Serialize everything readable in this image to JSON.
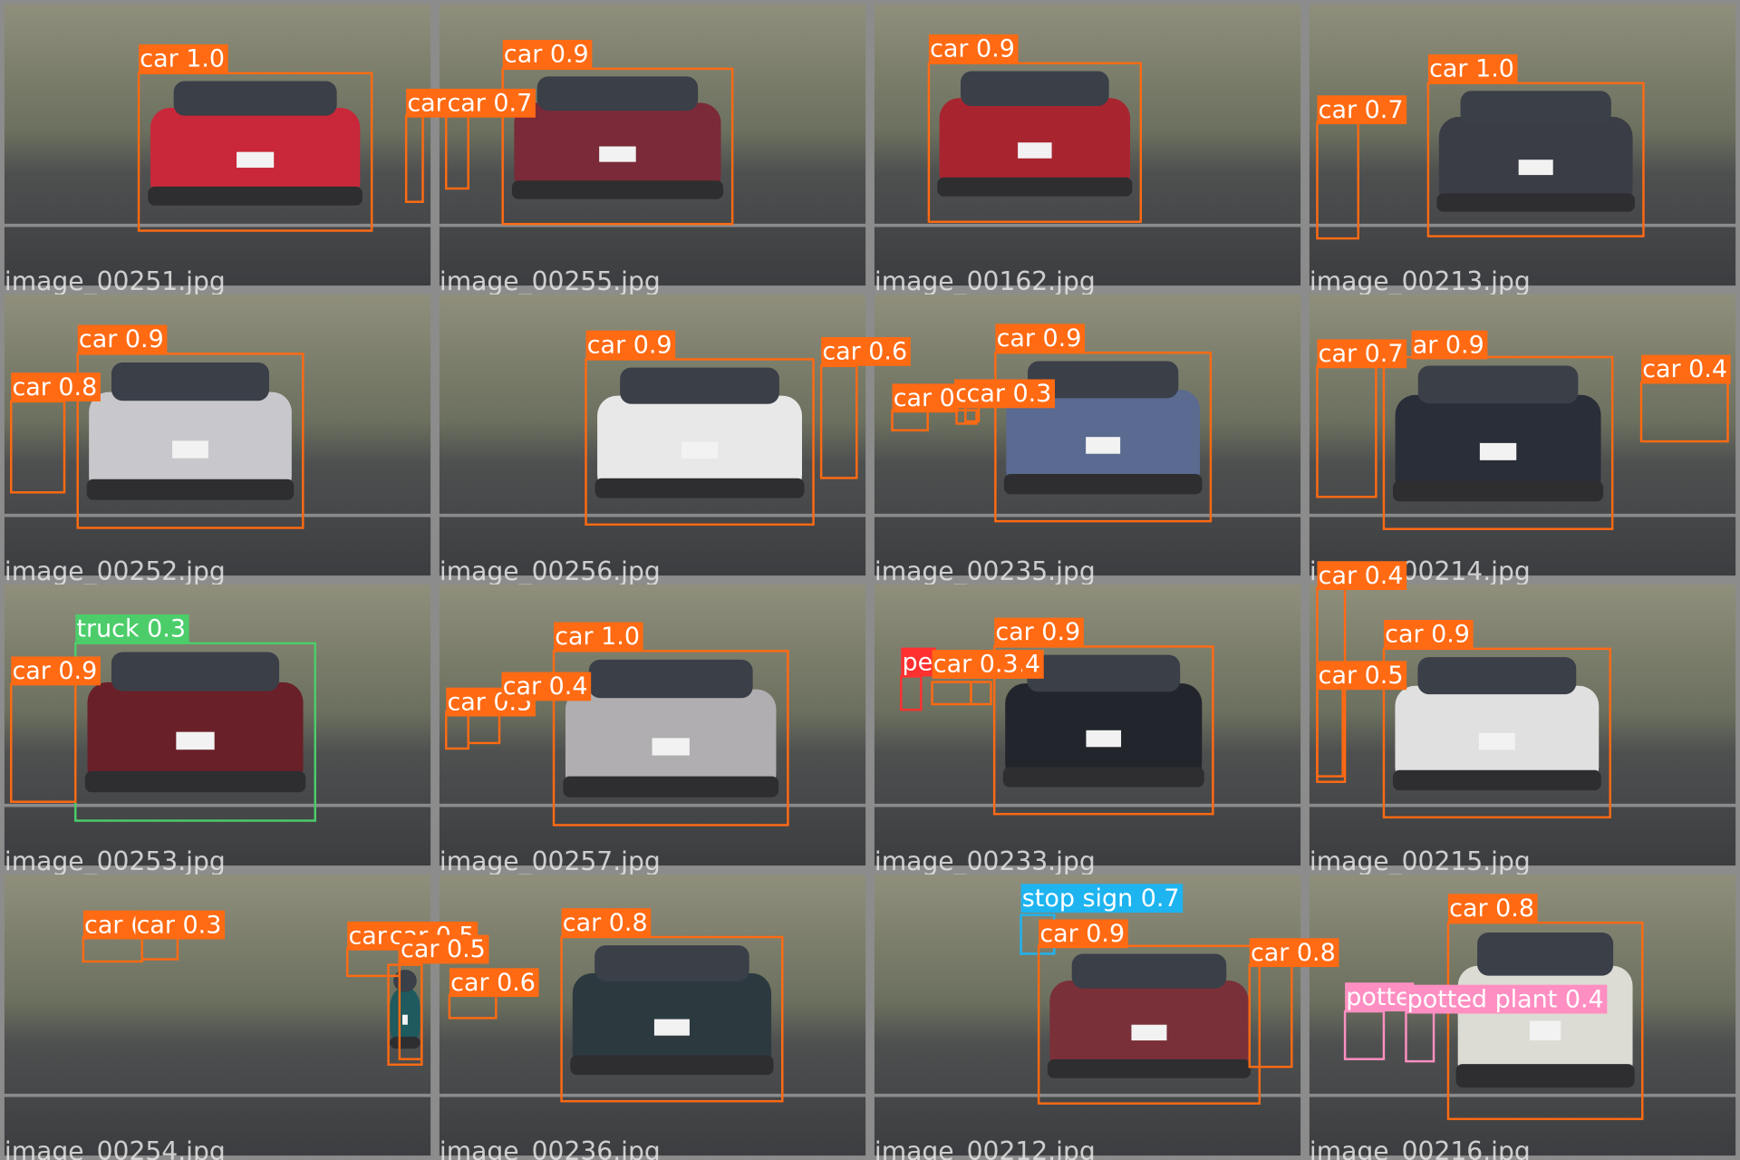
{
  "tiles": [
    {
      "filename": "image_00251.jpg",
      "detections": [
        {
          "label": "car 1.0"
        },
        {
          "label": "car"
        }
      ]
    },
    {
      "filename": "image_00255.jpg",
      "detections": [
        {
          "label": "car 0.7"
        },
        {
          "label": "car 0.9"
        }
      ]
    },
    {
      "filename": "image_00162.jpg",
      "detections": [
        {
          "label": "car 0.9"
        }
      ]
    },
    {
      "filename": "image_00213.jpg",
      "detections": [
        {
          "label": "car 0.7"
        },
        {
          "label": "car 1.0"
        }
      ]
    },
    {
      "filename": "image_00252.jpg",
      "detections": [
        {
          "label": "car 0.9"
        },
        {
          "label": "car 0.8"
        }
      ]
    },
    {
      "filename": "image_00256.jpg",
      "detections": [
        {
          "label": "car 0.9"
        },
        {
          "label": "car 0.6"
        }
      ]
    },
    {
      "filename": "image_00235.jpg",
      "detections": [
        {
          "label": "car 0.9"
        },
        {
          "label": "car 0"
        },
        {
          "label": "c"
        },
        {
          "label": "car 0.3"
        }
      ]
    },
    {
      "filename": "image_00214.jpg",
      "detections": [
        {
          "label": "ar 0.9"
        },
        {
          "label": "car 0.7"
        },
        {
          "label": "car 0.4"
        }
      ]
    },
    {
      "filename": "image_00253.jpg",
      "detections": [
        {
          "label": "truck 0.3"
        },
        {
          "label": "car 0.9"
        }
      ]
    },
    {
      "filename": "image_00257.jpg",
      "detections": [
        {
          "label": "car 1.0"
        },
        {
          "label": "car 0.5"
        },
        {
          "label": "car 0.4"
        }
      ]
    },
    {
      "filename": "image_00233.jpg",
      "detections": [
        {
          "label": "car 0.9"
        },
        {
          "label": "pe"
        },
        {
          "label": "car 0.4"
        },
        {
          "label": "car 0.3"
        }
      ]
    },
    {
      "filename": "image_00215.jpg",
      "detections": [
        {
          "label": "car 0.4"
        },
        {
          "label": "car 0.5"
        },
        {
          "label": "car 0.9"
        }
      ]
    },
    {
      "filename": "image_00254.jpg",
      "detections": [
        {
          "label": "car ("
        },
        {
          "label": "car 0.3"
        },
        {
          "label": "car"
        },
        {
          "label": "car 0.5"
        },
        {
          "label": "car 0.5"
        }
      ]
    },
    {
      "filename": "image_00236.jpg",
      "detections": [
        {
          "label": "car 0.8"
        },
        {
          "label": "car 0.6"
        }
      ]
    },
    {
      "filename": "image_00212.jpg",
      "detections": [
        {
          "label": "stop sign 0.7"
        },
        {
          "label": "car 0.9"
        },
        {
          "label": "car 0.8"
        }
      ]
    },
    {
      "filename": "image_00216.jpg",
      "detections": [
        {
          "label": "car 0.8"
        },
        {
          "label": "potte"
        },
        {
          "label": "potted plant 0.4"
        }
      ]
    }
  ]
}
